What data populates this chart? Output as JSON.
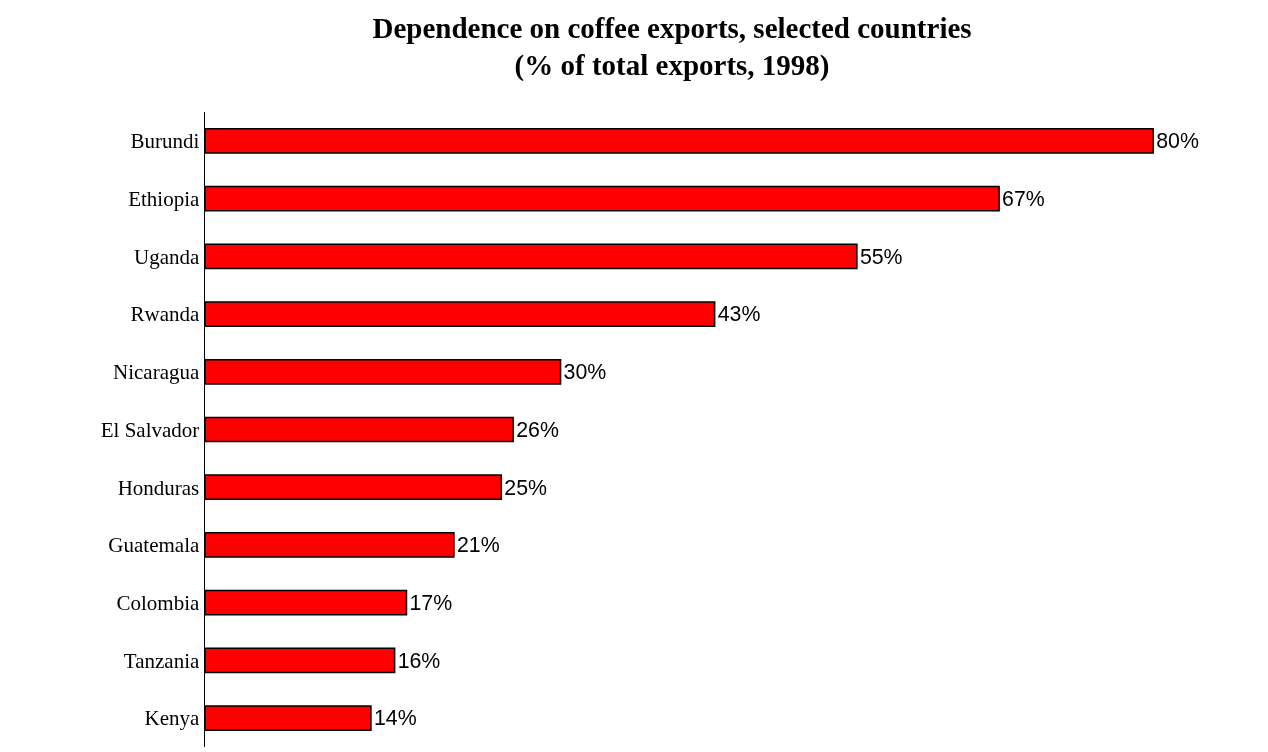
{
  "chart_data": {
    "type": "bar",
    "orientation": "horizontal",
    "relative": false,
    "title": "Dependence on coffee exports, selected countries",
    "subtitle": "(% of total exports, 1998)",
    "categories": [
      "Burundi",
      "Ethiopia",
      "Uganda",
      "Rwanda",
      "Nicaragua",
      "El Salvador",
      "Honduras",
      "Guatemala",
      "Colombia",
      "Tanzania",
      "Kenya"
    ],
    "values": [
      80,
      67,
      55,
      43,
      30,
      26,
      25,
      21,
      17,
      16,
      14
    ],
    "value_labels": [
      "80%",
      "67%",
      "55%",
      "43%",
      "30%",
      "26%",
      "25%",
      "21%",
      "17%",
      "16%",
      "14%"
    ],
    "color": "#ff0000",
    "grid": false,
    "legend": false
  }
}
